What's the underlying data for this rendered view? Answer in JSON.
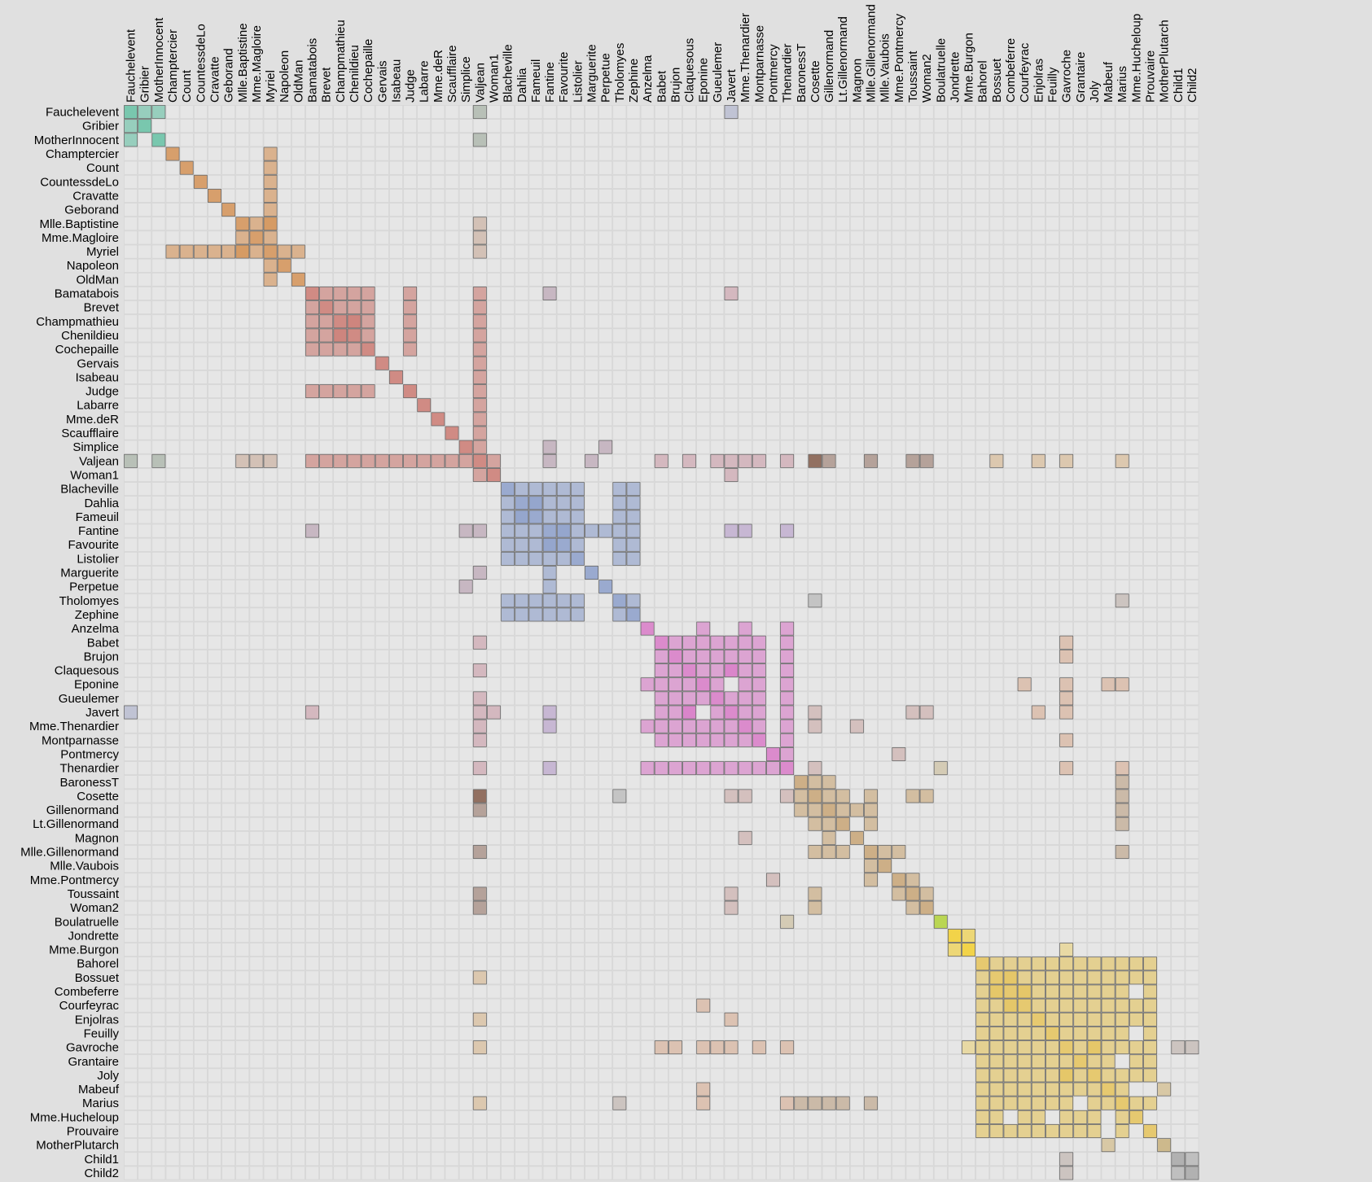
{
  "chart_data": {
    "type": "heatmap",
    "title": "",
    "xlabel": "",
    "ylabel": "",
    "x_labels_position": "top",
    "y_labels_position": "left",
    "nodes": [
      "Fauchelevent",
      "Gribier",
      "MotherInnocent",
      "Champtercier",
      "Count",
      "CountessdeLo",
      "Cravatte",
      "Geborand",
      "Mlle.Baptistine",
      "Mme.Magloire",
      "Myriel",
      "Napoleon",
      "OldMan",
      "Bamatabois",
      "Brevet",
      "Champmathieu",
      "Chenildieu",
      "Cochepaille",
      "Gervais",
      "Isabeau",
      "Judge",
      "Labarre",
      "Mme.deR",
      "Scaufflaire",
      "Simplice",
      "Valjean",
      "Woman1",
      "Blacheville",
      "Dahlia",
      "Fameuil",
      "Fantine",
      "Favourite",
      "Listolier",
      "Marguerite",
      "Perpetue",
      "Tholomyes",
      "Zephine",
      "Anzelma",
      "Babet",
      "Brujon",
      "Claquesous",
      "Eponine",
      "Gueulemer",
      "Javert",
      "Mme.Thenardier",
      "Montparnasse",
      "Pontmercy",
      "Thenardier",
      "BaronessT",
      "Cosette",
      "Gillenormand",
      "Lt.Gillenormand",
      "Magnon",
      "Mlle.Gillenormand",
      "Mlle.Vaubois",
      "Mme.Pontmercy",
      "Toussaint",
      "Woman2",
      "Boulatruelle",
      "Jondrette",
      "Mme.Burgon",
      "Bahorel",
      "Bossuet",
      "Combeferre",
      "Courfeyrac",
      "Enjolras",
      "Feuilly",
      "Gavroche",
      "Grantaire",
      "Joly",
      "Mabeuf",
      "Marius",
      "Mme.Hucheloup",
      "Prouvaire",
      "MotherPlutarch",
      "Child1",
      "Child2"
    ],
    "groups": [
      0,
      0,
      0,
      1,
      1,
      1,
      1,
      1,
      1,
      1,
      1,
      1,
      1,
      2,
      2,
      2,
      2,
      2,
      2,
      2,
      2,
      2,
      2,
      2,
      2,
      2,
      2,
      3,
      3,
      3,
      3,
      3,
      3,
      3,
      3,
      3,
      3,
      4,
      4,
      4,
      4,
      4,
      4,
      4,
      4,
      4,
      4,
      4,
      5,
      5,
      5,
      5,
      5,
      5,
      5,
      5,
      5,
      5,
      6,
      7,
      7,
      8,
      8,
      8,
      8,
      8,
      8,
      8,
      8,
      8,
      8,
      8,
      8,
      8,
      9,
      10,
      10
    ],
    "group_colors": [
      "#66c2a5",
      "#d59357",
      "#cc7b73",
      "#8da0cb",
      "#d97bc8",
      "#c9a677",
      "#b3d33a",
      "#f5d02e",
      "#e6c45c",
      "#c9b27c",
      "#a8a8a8"
    ],
    "cross_colors": {
      "0-2": "#8fa08e",
      "0-4": "#a0a6c8",
      "1-2": "#c6a28c",
      "2-3": "#ad8da4",
      "2-4": "#c8909e",
      "2-5": "#8a6453",
      "2-8": "#d8b07d",
      "3-4": "#ae8ec6",
      "3-5": "#a8a8a8",
      "4-5": "#c8a09c",
      "4-8": "#d8a484",
      "5-8": "#b59470",
      "8-9": "#d0b06a",
      "6-4": "#c8b58a",
      "7-8": "#f0d268"
    },
    "edges": [
      [
        0,
        1
      ],
      [
        0,
        2
      ],
      [
        0,
        25
      ],
      [
        0,
        43
      ],
      [
        2,
        25
      ],
      [
        3,
        10
      ],
      [
        4,
        10
      ],
      [
        5,
        10
      ],
      [
        6,
        10
      ],
      [
        7,
        10
      ],
      [
        8,
        9
      ],
      [
        8,
        10
      ],
      [
        9,
        10
      ],
      [
        10,
        11
      ],
      [
        10,
        12
      ],
      [
        8,
        25
      ],
      [
        9,
        25
      ],
      [
        10,
        25
      ],
      [
        13,
        14
      ],
      [
        13,
        15
      ],
      [
        13,
        16
      ],
      [
        13,
        17
      ],
      [
        14,
        15
      ],
      [
        14,
        16
      ],
      [
        14,
        17
      ],
      [
        15,
        16
      ],
      [
        15,
        17
      ],
      [
        16,
        17
      ],
      [
        13,
        20
      ],
      [
        14,
        20
      ],
      [
        15,
        20
      ],
      [
        16,
        20
      ],
      [
        17,
        20
      ],
      [
        13,
        25
      ],
      [
        14,
        25
      ],
      [
        15,
        25
      ],
      [
        16,
        25
      ],
      [
        17,
        25
      ],
      [
        18,
        25
      ],
      [
        19,
        25
      ],
      [
        20,
        25
      ],
      [
        21,
        25
      ],
      [
        22,
        25
      ],
      [
        23,
        25
      ],
      [
        24,
        25
      ],
      [
        25,
        26
      ],
      [
        13,
        30
      ],
      [
        13,
        43
      ],
      [
        24,
        30
      ],
      [
        24,
        34
      ],
      [
        26,
        43
      ],
      [
        27,
        28
      ],
      [
        27,
        29
      ],
      [
        27,
        30
      ],
      [
        27,
        31
      ],
      [
        27,
        32
      ],
      [
        27,
        35
      ],
      [
        27,
        36
      ],
      [
        28,
        29
      ],
      [
        28,
        30
      ],
      [
        28,
        31
      ],
      [
        28,
        32
      ],
      [
        28,
        35
      ],
      [
        28,
        36
      ],
      [
        29,
        30
      ],
      [
        29,
        31
      ],
      [
        29,
        32
      ],
      [
        29,
        35
      ],
      [
        29,
        36
      ],
      [
        30,
        31
      ],
      [
        30,
        32
      ],
      [
        30,
        33
      ],
      [
        30,
        34
      ],
      [
        30,
        35
      ],
      [
        30,
        36
      ],
      [
        31,
        32
      ],
      [
        31,
        35
      ],
      [
        31,
        36
      ],
      [
        32,
        35
      ],
      [
        32,
        36
      ],
      [
        35,
        36
      ],
      [
        25,
        33
      ],
      [
        25,
        30
      ],
      [
        30,
        43
      ],
      [
        30,
        44
      ],
      [
        30,
        47
      ],
      [
        35,
        49
      ],
      [
        35,
        71
      ],
      [
        37,
        41
      ],
      [
        37,
        44
      ],
      [
        37,
        47
      ],
      [
        38,
        39
      ],
      [
        38,
        40
      ],
      [
        38,
        41
      ],
      [
        38,
        42
      ],
      [
        38,
        43
      ],
      [
        38,
        44
      ],
      [
        38,
        45
      ],
      [
        38,
        47
      ],
      [
        39,
        40
      ],
      [
        39,
        41
      ],
      [
        39,
        42
      ],
      [
        39,
        43
      ],
      [
        39,
        44
      ],
      [
        39,
        45
      ],
      [
        39,
        47
      ],
      [
        40,
        41
      ],
      [
        40,
        42
      ],
      [
        40,
        43
      ],
      [
        40,
        44
      ],
      [
        40,
        45
      ],
      [
        40,
        47
      ],
      [
        41,
        42
      ],
      [
        41,
        44
      ],
      [
        41,
        45
      ],
      [
        41,
        47
      ],
      [
        42,
        43
      ],
      [
        42,
        44
      ],
      [
        42,
        45
      ],
      [
        42,
        47
      ],
      [
        43,
        44
      ],
      [
        43,
        45
      ],
      [
        43,
        47
      ],
      [
        44,
        45
      ],
      [
        44,
        47
      ],
      [
        45,
        47
      ],
      [
        46,
        47
      ],
      [
        25,
        38
      ],
      [
        25,
        40
      ],
      [
        25,
        42
      ],
      [
        25,
        43
      ],
      [
        25,
        44
      ],
      [
        25,
        45
      ],
      [
        25,
        47
      ],
      [
        25,
        49
      ],
      [
        25,
        50
      ],
      [
        25,
        53
      ],
      [
        25,
        56
      ],
      [
        25,
        57
      ],
      [
        25,
        62
      ],
      [
        25,
        65
      ],
      [
        25,
        67
      ],
      [
        25,
        71
      ],
      [
        43,
        49
      ],
      [
        43,
        56
      ],
      [
        43,
        57
      ],
      [
        43,
        65
      ],
      [
        44,
        49
      ],
      [
        44,
        52
      ],
      [
        46,
        55
      ],
      [
        47,
        49
      ],
      [
        47,
        58
      ],
      [
        48,
        49
      ],
      [
        48,
        50
      ],
      [
        49,
        50
      ],
      [
        49,
        51
      ],
      [
        49,
        53
      ],
      [
        49,
        56
      ],
      [
        49,
        57
      ],
      [
        50,
        51
      ],
      [
        50,
        52
      ],
      [
        50,
        53
      ],
      [
        51,
        53
      ],
      [
        53,
        54
      ],
      [
        53,
        55
      ],
      [
        55,
        56
      ],
      [
        56,
        57
      ],
      [
        48,
        71
      ],
      [
        49,
        71
      ],
      [
        50,
        71
      ],
      [
        51,
        71
      ],
      [
        53,
        71
      ],
      [
        41,
        64
      ],
      [
        41,
        70
      ],
      [
        41,
        71
      ],
      [
        38,
        67
      ],
      [
        39,
        67
      ],
      [
        41,
        67
      ],
      [
        42,
        67
      ],
      [
        43,
        67
      ],
      [
        45,
        67
      ],
      [
        47,
        67
      ],
      [
        47,
        71
      ],
      [
        65,
        43
      ],
      [
        59,
        60
      ],
      [
        60,
        67
      ],
      [
        61,
        62
      ],
      [
        61,
        63
      ],
      [
        61,
        64
      ],
      [
        61,
        65
      ],
      [
        61,
        66
      ],
      [
        61,
        67
      ],
      [
        61,
        68
      ],
      [
        61,
        69
      ],
      [
        61,
        70
      ],
      [
        61,
        71
      ],
      [
        61,
        72
      ],
      [
        61,
        73
      ],
      [
        62,
        63
      ],
      [
        62,
        64
      ],
      [
        62,
        65
      ],
      [
        62,
        66
      ],
      [
        62,
        67
      ],
      [
        62,
        68
      ],
      [
        62,
        69
      ],
      [
        62,
        70
      ],
      [
        62,
        71
      ],
      [
        62,
        72
      ],
      [
        62,
        73
      ],
      [
        63,
        64
      ],
      [
        63,
        65
      ],
      [
        63,
        66
      ],
      [
        63,
        67
      ],
      [
        63,
        68
      ],
      [
        63,
        69
      ],
      [
        63,
        70
      ],
      [
        63,
        71
      ],
      [
        63,
        73
      ],
      [
        64,
        65
      ],
      [
        64,
        66
      ],
      [
        64,
        67
      ],
      [
        64,
        68
      ],
      [
        64,
        69
      ],
      [
        64,
        70
      ],
      [
        64,
        71
      ],
      [
        64,
        72
      ],
      [
        64,
        73
      ],
      [
        65,
        66
      ],
      [
        65,
        67
      ],
      [
        65,
        68
      ],
      [
        65,
        69
      ],
      [
        65,
        70
      ],
      [
        65,
        71
      ],
      [
        65,
        72
      ],
      [
        65,
        73
      ],
      [
        66,
        67
      ],
      [
        66,
        68
      ],
      [
        66,
        69
      ],
      [
        66,
        70
      ],
      [
        66,
        71
      ],
      [
        66,
        73
      ],
      [
        67,
        68
      ],
      [
        67,
        69
      ],
      [
        67,
        70
      ],
      [
        67,
        71
      ],
      [
        67,
        72
      ],
      [
        67,
        73
      ],
      [
        67,
        75
      ],
      [
        67,
        76
      ],
      [
        68,
        69
      ],
      [
        68,
        70
      ],
      [
        68,
        72
      ],
      [
        68,
        73
      ],
      [
        69,
        70
      ],
      [
        69,
        71
      ],
      [
        69,
        72
      ],
      [
        69,
        73
      ],
      [
        70,
        71
      ],
      [
        70,
        74
      ],
      [
        71,
        72
      ],
      [
        71,
        73
      ],
      [
        75,
        76
      ]
    ],
    "strong_edges": [
      [
        25,
        49
      ],
      [
        15,
        16
      ],
      [
        28,
        29
      ],
      [
        40,
        43
      ],
      [
        63,
        64
      ],
      [
        67,
        69
      ],
      [
        30,
        31
      ],
      [
        8,
        10
      ],
      [
        62,
        63
      ]
    ]
  }
}
